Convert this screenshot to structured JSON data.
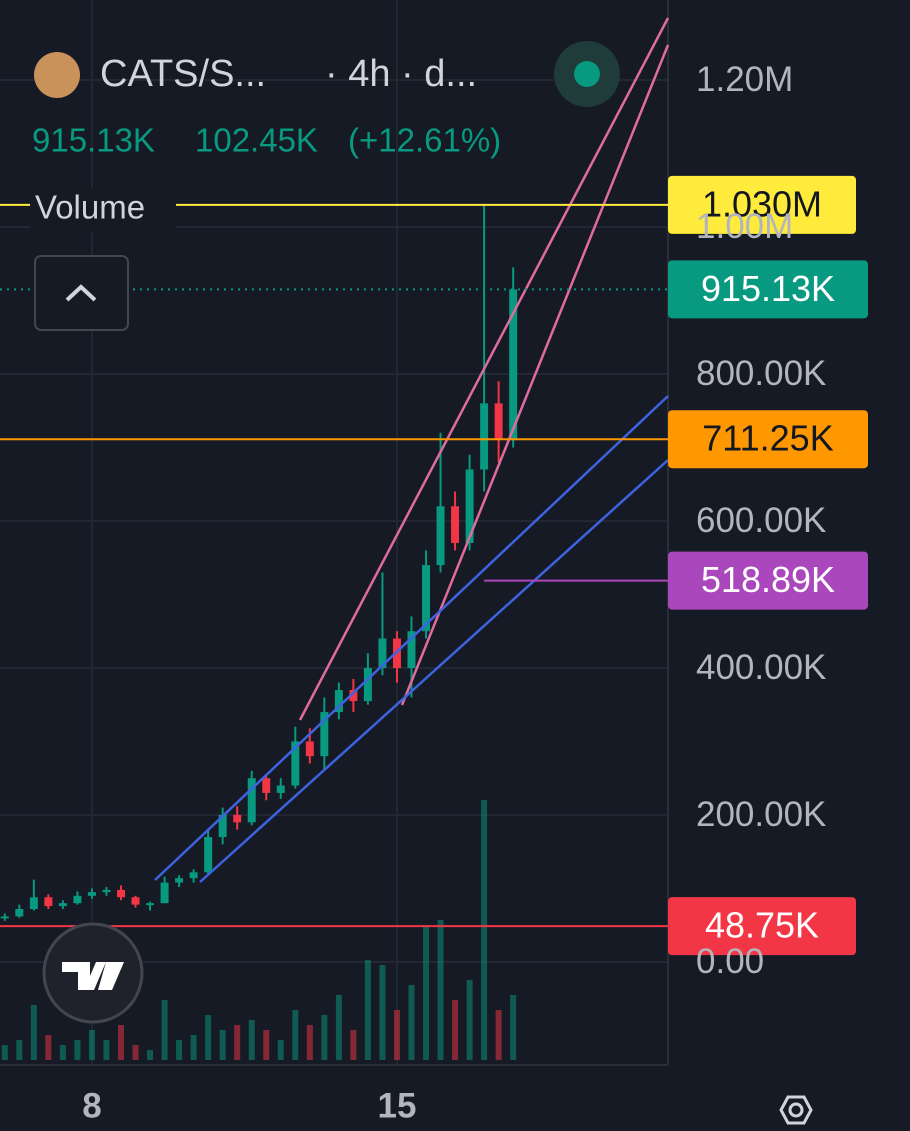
{
  "header": {
    "symbol": "CATS/S...",
    "interval": "· 4h · d...",
    "price": "915.13K",
    "change": "102.45K",
    "change_pct": "(+12.61%)",
    "indicator": "Volume"
  },
  "chart_data": {
    "type": "candlestick",
    "x": [
      6.0,
      6.333,
      6.667,
      7.0,
      7.333,
      7.667,
      8.0,
      8.333,
      8.667,
      9.0,
      9.333,
      9.667,
      10.0,
      10.333,
      10.667,
      11.0,
      11.333,
      11.667,
      12.0,
      12.333,
      12.667,
      13.0,
      13.333,
      13.667,
      14.0,
      14.333,
      14.667,
      15.0,
      15.333,
      15.667,
      16.0,
      16.333,
      16.667,
      17.0,
      17.333,
      17.667
    ],
    "open": [
      60000,
      62000,
      72000,
      88000,
      76000,
      80000,
      90000,
      95000,
      98000,
      88000,
      78000,
      80000,
      108000,
      114000,
      122000,
      170000,
      200000,
      190000,
      250000,
      230000,
      240000,
      300000,
      280000,
      340000,
      370000,
      355000,
      400000,
      440000,
      400000,
      450000,
      540000,
      620000,
      570000,
      670000,
      760000,
      710000
    ],
    "high": [
      66000,
      78000,
      112000,
      92000,
      84000,
      96000,
      100000,
      102000,
      104000,
      90000,
      82000,
      116000,
      118000,
      126000,
      180000,
      210000,
      212000,
      260000,
      256000,
      250000,
      320000,
      318000,
      360000,
      380000,
      385000,
      420000,
      530000,
      450000,
      470000,
      560000,
      720000,
      640000,
      690000,
      1030000,
      790000,
      945000
    ],
    "low": [
      56000,
      60000,
      70000,
      72000,
      72000,
      78000,
      86000,
      90000,
      84000,
      74000,
      70000,
      80000,
      102000,
      108000,
      118000,
      160000,
      180000,
      186000,
      220000,
      222000,
      236000,
      270000,
      262000,
      330000,
      340000,
      350000,
      390000,
      380000,
      360000,
      440000,
      530000,
      560000,
      560000,
      640000,
      680000,
      700000
    ],
    "close": [
      62000,
      72000,
      88000,
      76000,
      80000,
      90000,
      95000,
      98000,
      88000,
      78000,
      80000,
      108000,
      114000,
      122000,
      170000,
      200000,
      190000,
      250000,
      230000,
      240000,
      300000,
      280000,
      340000,
      370000,
      355000,
      400000,
      440000,
      400000,
      450000,
      540000,
      620000,
      570000,
      670000,
      760000,
      710000,
      915130
    ],
    "volume": [
      15,
      20,
      55,
      25,
      15,
      20,
      30,
      20,
      35,
      15,
      10,
      60,
      20,
      25,
      45,
      30,
      35,
      40,
      30,
      20,
      50,
      35,
      45,
      65,
      30,
      100,
      95,
      50,
      75,
      135,
      140,
      60,
      80,
      260,
      50,
      65
    ],
    "up_color": "#089981",
    "down_color": "#f23645",
    "ylim": [
      -140200,
      1308800
    ],
    "yticks": [
      {
        "value": 0,
        "label": "0.00"
      },
      {
        "value": 200000,
        "label": "200.00K"
      },
      {
        "value": 400000,
        "label": "400.00K"
      },
      {
        "value": 600000,
        "label": "600.00K"
      },
      {
        "value": 800000,
        "label": "800.00K"
      },
      {
        "value": 1000000,
        "label": "1.00M"
      },
      {
        "value": 1200000,
        "label": "1.20M"
      }
    ],
    "xlim": [
      5.89,
      21.22
    ],
    "xticks": [
      8,
      15
    ],
    "grid": true,
    "price_lines": [
      {
        "value": 1030000,
        "label": "1.030M",
        "color": "#ffeb3b",
        "text_color": "#131722"
      },
      {
        "value": 915130,
        "label": "915.13K",
        "color": "#089981",
        "text_color": "#ffffff",
        "style": "dotted"
      },
      {
        "value": 711250,
        "label": "711.25K",
        "color": "#ff9800",
        "text_color": "#131722"
      },
      {
        "value": 518890,
        "label": "518.89K",
        "color": "#ab47bc",
        "text_color": "#ffffff",
        "from": 17.0
      },
      {
        "value": 48750,
        "label": "48.75K",
        "color": "#f23645",
        "text_color": "#ffffff"
      }
    ]
  }
}
